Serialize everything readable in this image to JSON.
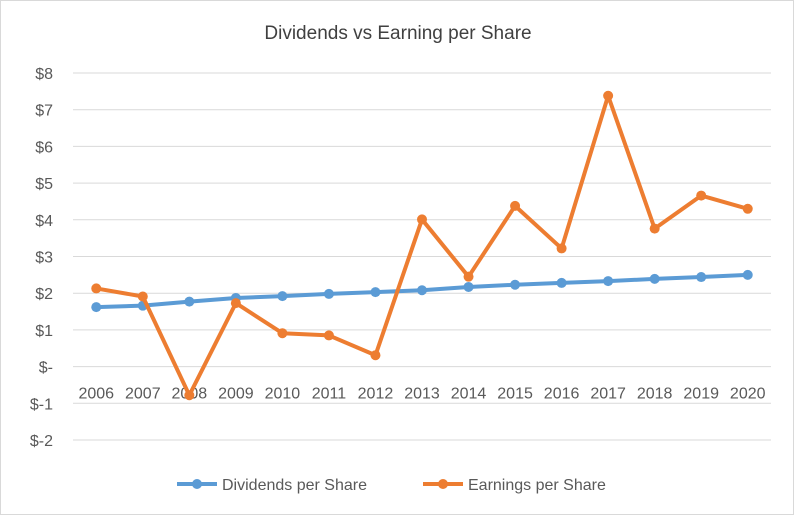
{
  "chart_data": {
    "type": "line",
    "title": "Dividends vs Earning per Share",
    "xlabel": "",
    "ylabel": "",
    "categories": [
      "2006",
      "2007",
      "2008",
      "2009",
      "2010",
      "2011",
      "2012",
      "2013",
      "2014",
      "2015",
      "2016",
      "2017",
      "2018",
      "2019",
      "2020"
    ],
    "y_tick_labels": [
      "$8",
      "$7",
      "$6",
      "$5",
      "$4",
      "$3",
      "$2",
      "$1",
      "$-",
      "$-1",
      "$-2"
    ],
    "ylim": [
      -2,
      8
    ],
    "grid": true,
    "legend_position": "bottom",
    "series": [
      {
        "name": "Dividends per Share",
        "color": "#5b9bd5",
        "values": [
          1.62,
          1.66,
          1.77,
          1.87,
          1.92,
          1.98,
          2.03,
          2.08,
          2.17,
          2.23,
          2.28,
          2.33,
          2.39,
          2.44,
          2.5
        ]
      },
      {
        "name": "Earnings per Share",
        "color": "#ed7d31",
        "values": [
          2.13,
          1.91,
          -0.78,
          1.73,
          0.91,
          0.85,
          0.31,
          4.01,
          2.45,
          4.38,
          3.22,
          7.38,
          3.76,
          4.66,
          4.3
        ]
      }
    ]
  }
}
